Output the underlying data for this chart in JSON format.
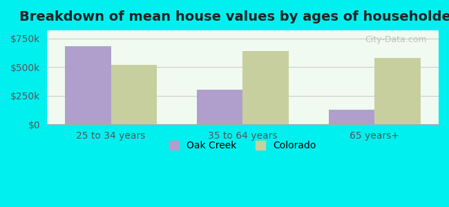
{
  "title": "Breakdown of mean house values by ages of householders",
  "categories": [
    "25 to 34 years",
    "35 to 64 years",
    "65 years+"
  ],
  "oak_creek": [
    680000,
    300000,
    130000
  ],
  "colorado": [
    520000,
    640000,
    580000
  ],
  "oak_creek_color": "#b09fcc",
  "colorado_color": "#c8cf9f",
  "yticks": [
    0,
    250000,
    500000,
    750000
  ],
  "ytick_labels": [
    "$0",
    "$250k",
    "$500k",
    "$750k"
  ],
  "ylim": [
    0,
    820000
  ],
  "bar_width": 0.35,
  "background_color": "#e0faf8",
  "plot_bg_start": "#f0faf0",
  "plot_bg_end": "#ffffff",
  "legend_oak_creek": "Oak Creek",
  "legend_colorado": "Colorado",
  "title_fontsize": 14,
  "tick_fontsize": 10,
  "legend_fontsize": 10,
  "outer_bg": "#00f0f0"
}
